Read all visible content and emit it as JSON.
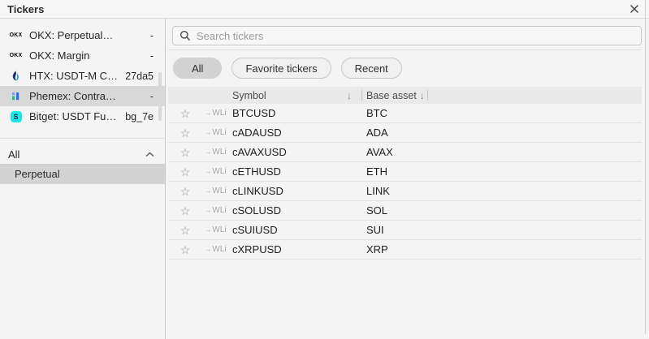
{
  "dialog": {
    "title": "Tickers"
  },
  "icons": {
    "star": "☆",
    "sort_desc": "↓",
    "provider_arrow": "→"
  },
  "colors": {
    "selection_gray": "#d8d8d8",
    "header_bg": "#e9e9e9",
    "htx_dark": "#1b2f6e",
    "htx_light": "#2d9fe8",
    "phemex_blue": "#2f6bf0",
    "phemex_green": "#1fc77c",
    "bitget_cyan": "#1ce8e8"
  },
  "sidebar": {
    "exchanges": [
      {
        "name": "OKX: Perpetual…",
        "value": "-",
        "icon": "okx",
        "logo_text": "OKX",
        "selected": false
      },
      {
        "name": "OKX: Margin",
        "value": "-",
        "icon": "okx",
        "logo_text": "OKX",
        "selected": false
      },
      {
        "name": "HTX: USDT-M C…",
        "value": "27da5",
        "icon": "htx",
        "selected": false
      },
      {
        "name": "Phemex: Contra…",
        "value": "-",
        "icon": "phemex",
        "selected": true
      },
      {
        "name": "Bitget: USDT Fu…",
        "value": "bg_7e",
        "icon": "bitget",
        "selected": false
      }
    ],
    "groups": [
      {
        "label": "All",
        "expanded": true,
        "items": [
          {
            "label": "Perpetual",
            "selected": true
          }
        ]
      }
    ]
  },
  "main": {
    "search": {
      "placeholder": "Search tickers"
    },
    "filters": [
      {
        "label": "All",
        "selected": true
      },
      {
        "label": "Favorite tickers",
        "selected": false
      },
      {
        "label": "Recent",
        "selected": false
      }
    ],
    "table": {
      "provider": "WLi",
      "columns": [
        {
          "label": "Symbol",
          "sort": "desc"
        },
        {
          "label": "Base asset",
          "sort": "desc"
        }
      ],
      "rows": [
        {
          "symbol": "BTCUSD",
          "base_asset": "BTC"
        },
        {
          "symbol": "cADAUSD",
          "base_asset": "ADA"
        },
        {
          "symbol": "cAVAXUSD",
          "base_asset": "AVAX"
        },
        {
          "symbol": "cETHUSD",
          "base_asset": "ETH"
        },
        {
          "symbol": "cLINKUSD",
          "base_asset": "LINK"
        },
        {
          "symbol": "cSOLUSD",
          "base_asset": "SOL"
        },
        {
          "symbol": "cSUIUSD",
          "base_asset": "SUI"
        },
        {
          "symbol": "cXRPUSD",
          "base_asset": "XRP"
        }
      ]
    }
  }
}
